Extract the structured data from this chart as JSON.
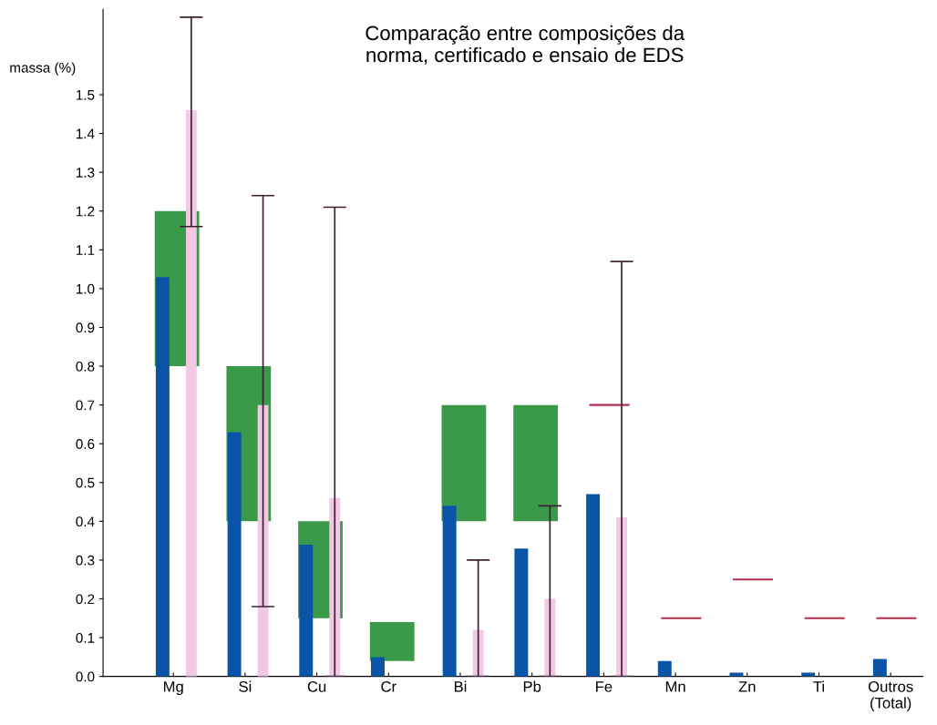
{
  "chart_data": {
    "type": "bar",
    "title": "Comparação entre composições da\nnorma, certificado e ensaio de EDS",
    "ylabel": "massa (%)",
    "categories": [
      "Mg",
      "Si",
      "Cu",
      "Cr",
      "Bi",
      "Pb",
      "Fe",
      "Mn",
      "Zn",
      "Ti",
      "Outros\n(Total)"
    ],
    "series": [
      {
        "color": "#3a9a4a",
        "base": [
          0.8,
          0.4,
          0.15,
          0.04,
          0.4,
          0.4,
          null,
          null,
          null,
          null,
          null
        ],
        "values": [
          0.4,
          0.4,
          0.25,
          0.1,
          0.3,
          0.3,
          null,
          null,
          null,
          null,
          null
        ]
      },
      {
        "color": "#0a54a8",
        "values": [
          1.03,
          0.63,
          0.34,
          0.05,
          0.44,
          0.33,
          0.47,
          0.04,
          0.01,
          0.01,
          0.045
        ]
      },
      {
        "color": "#f2c8e4",
        "values": [
          1.46,
          0.7,
          0.46,
          null,
          0.12,
          0.2,
          0.41,
          null,
          null,
          null,
          null
        ],
        "errors": [
          [
            1.16,
            1.7
          ],
          [
            0.18,
            1.24
          ],
          [
            0,
            1.21
          ],
          null,
          [
            0,
            0.3
          ],
          [
            0,
            0.44
          ],
          [
            0,
            1.07
          ],
          null,
          null,
          null,
          null
        ]
      },
      {
        "color": "#b03050",
        "base": [
          null,
          null,
          null,
          null,
          null,
          null,
          0.7,
          0.15,
          0.25,
          0.15,
          0.15
        ],
        "values": [
          null,
          null,
          null,
          null,
          null,
          null,
          0,
          0,
          0,
          0,
          0
        ]
      }
    ],
    "ylim": [
      0,
      1.72
    ],
    "yticks": [
      {
        "value": 0,
        "label": "0.0"
      },
      0.1,
      0.2,
      0.3,
      0.4,
      0.5,
      0.6,
      0.7,
      0.8,
      0.9,
      {
        "value": 1,
        "label": "1.0"
      },
      1.1,
      1.2,
      1.3,
      1.4,
      1.5
    ],
    "grid": false,
    "legend": false
  }
}
